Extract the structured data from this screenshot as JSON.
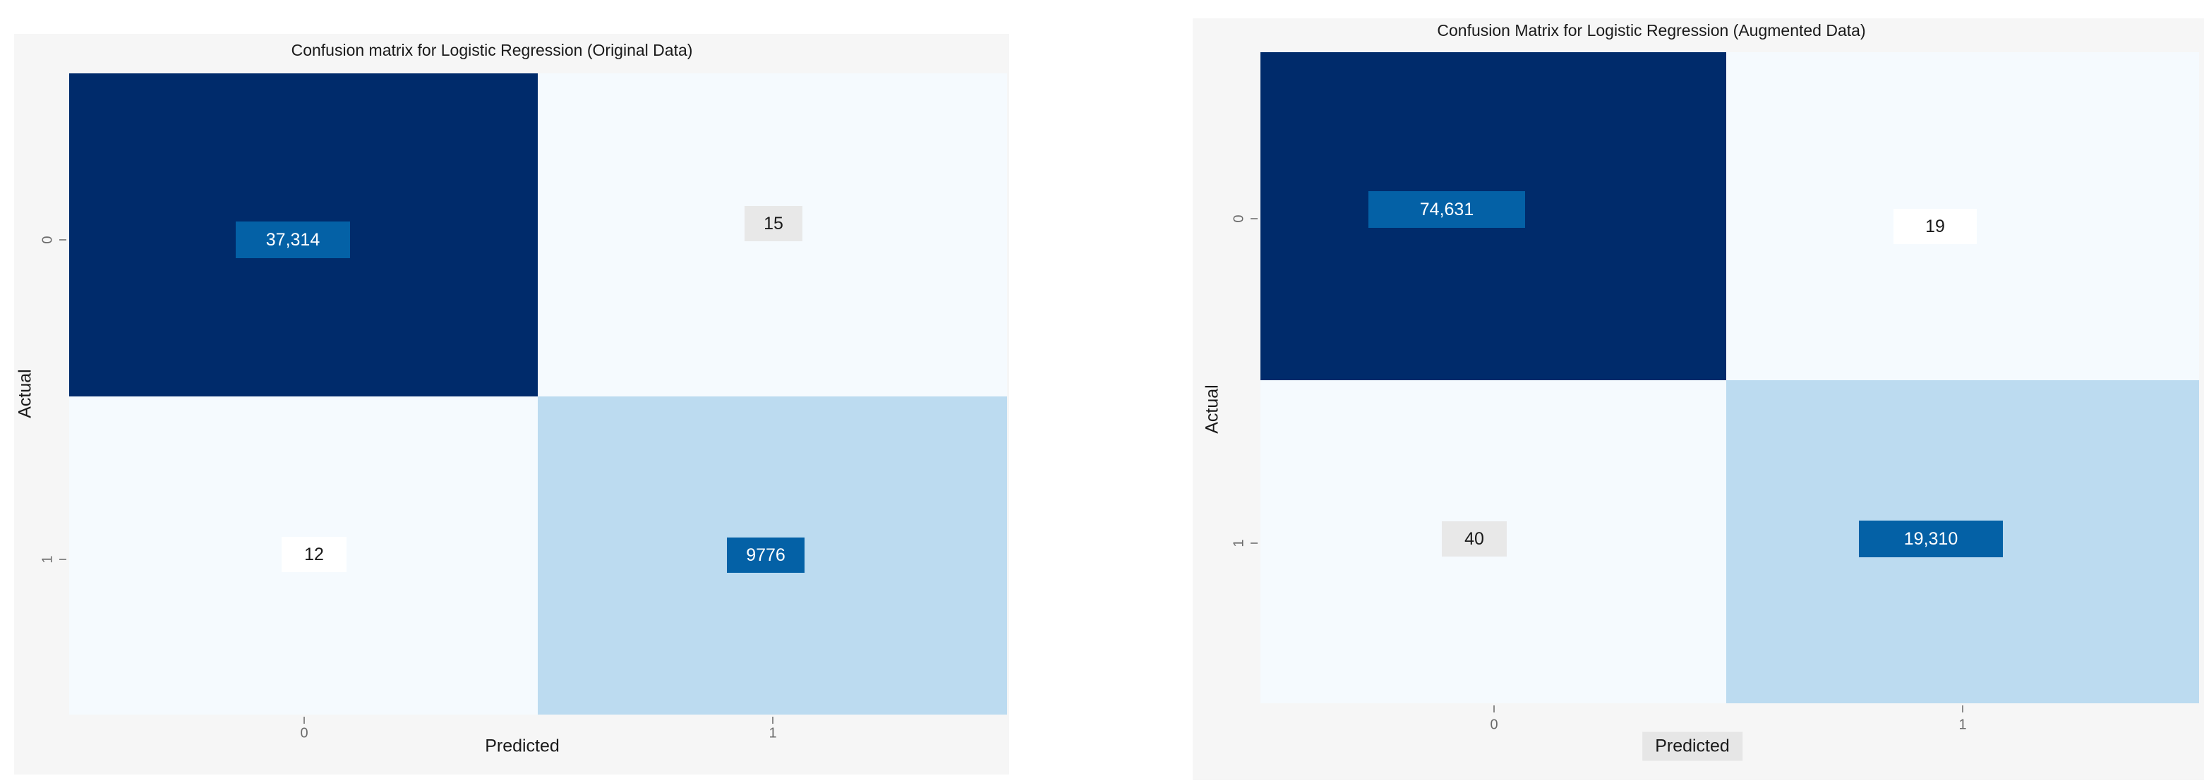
{
  "colors": {
    "dark": "#002b6b",
    "light": "#f5fafe",
    "mid": "#bcdbf0",
    "box_blue": "#0461a6",
    "box_gray": "#e8e8e8",
    "box_white": "#ffffff"
  },
  "chart_data": [
    {
      "type": "heatmap",
      "title": "Confusion matrix for Logistic Regression (Original Data)",
      "xlabel": "Predicted",
      "ylabel": "Actual",
      "x_categories": [
        "0",
        "1"
      ],
      "y_categories": [
        "0",
        "1"
      ],
      "matrix": [
        [
          37314,
          15
        ],
        [
          12,
          9776
        ]
      ],
      "labels": [
        [
          "37,314",
          "15"
        ],
        [
          "12",
          "9776"
        ]
      ],
      "colorscale": "Blues"
    },
    {
      "type": "heatmap",
      "title": "Confusion Matrix for Logistic Regression (Augmented Data)",
      "xlabel": "Predicted",
      "ylabel": "Actual",
      "x_categories": [
        "0",
        "1"
      ],
      "y_categories": [
        "0",
        "1"
      ],
      "matrix": [
        [
          74631,
          19
        ],
        [
          40,
          19310
        ]
      ],
      "labels": [
        [
          "74,631",
          "19"
        ],
        [
          "40",
          "19,310"
        ]
      ],
      "colorscale": "Blues"
    }
  ]
}
